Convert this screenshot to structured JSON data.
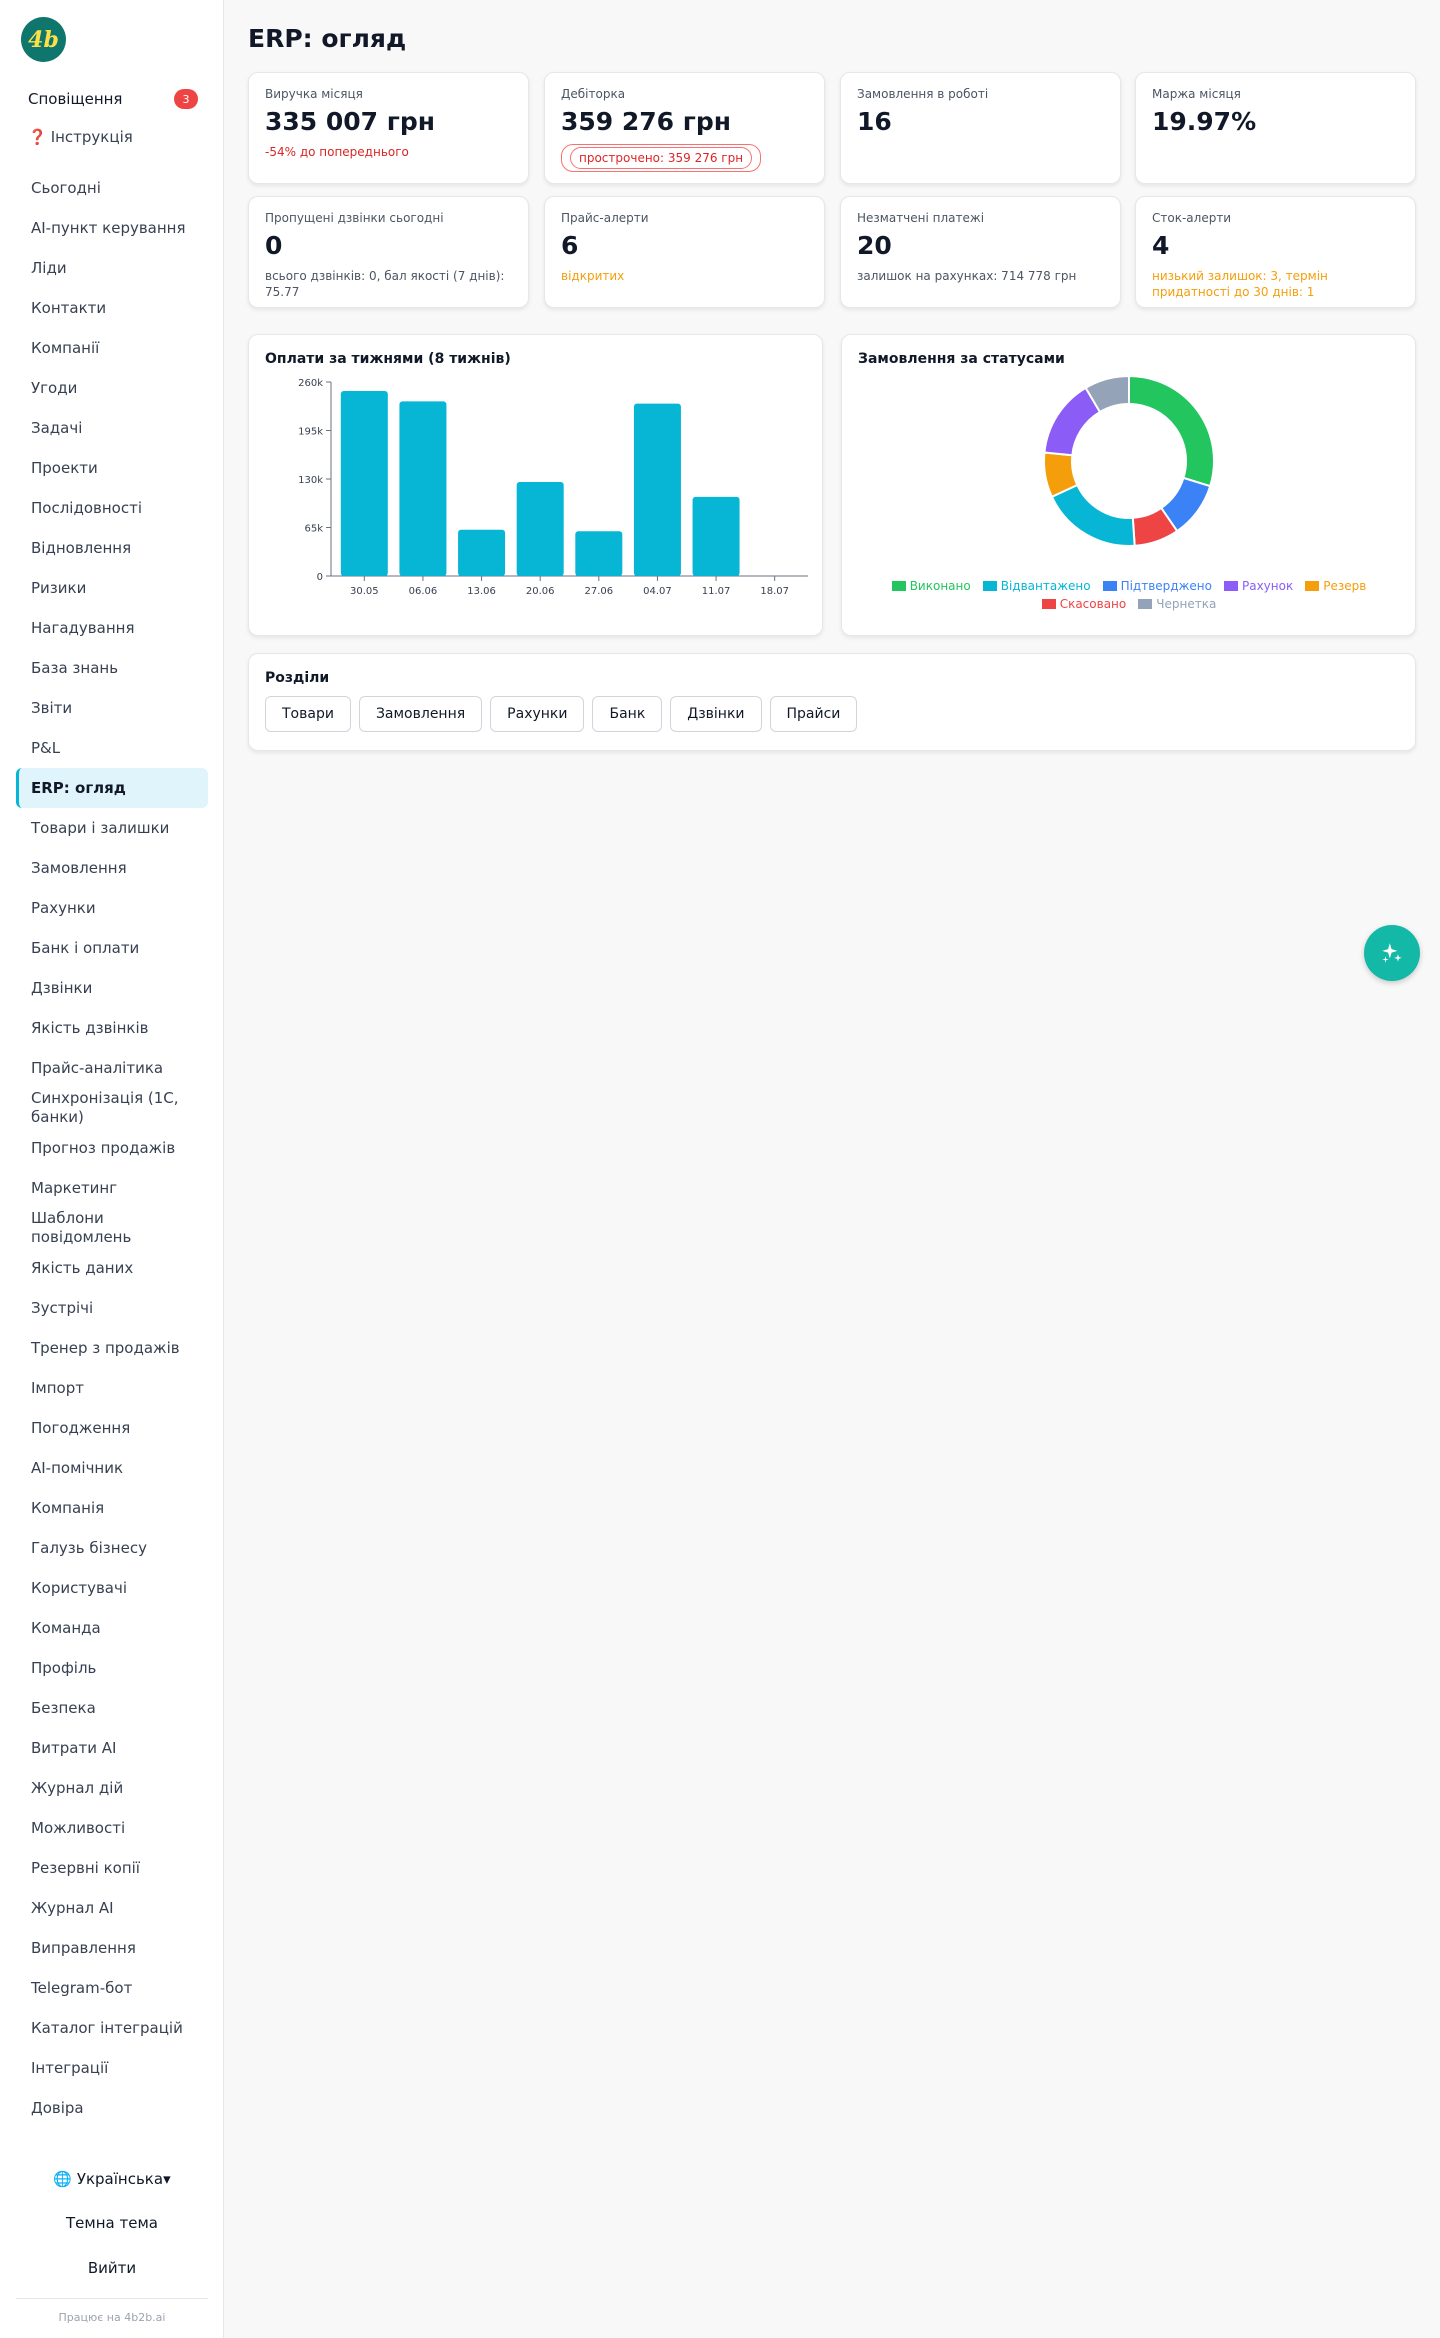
{
  "app": {
    "logo_text": "4b"
  },
  "sidebar": {
    "notifications_label": "Сповіщення",
    "notifications_count": "3",
    "instruction_label": "Інструкція",
    "items": [
      {
        "label": "Сьогодні"
      },
      {
        "label": "AI-пункт керування"
      },
      {
        "label": "Ліди"
      },
      {
        "label": "Контакти"
      },
      {
        "label": "Компанії"
      },
      {
        "label": "Угоди"
      },
      {
        "label": "Задачі"
      },
      {
        "label": "Проекти"
      },
      {
        "label": "Послідовності"
      },
      {
        "label": "Відновлення"
      },
      {
        "label": "Ризики"
      },
      {
        "label": "Нагадування"
      },
      {
        "label": "База знань"
      },
      {
        "label": "Звіти"
      },
      {
        "label": "P&L"
      },
      {
        "label": "ERP: огляд",
        "active": true
      },
      {
        "label": "Товари і залишки"
      },
      {
        "label": "Замовлення"
      },
      {
        "label": "Рахунки"
      },
      {
        "label": "Банк і оплати"
      },
      {
        "label": "Дзвінки"
      },
      {
        "label": "Якість дзвінків"
      },
      {
        "label": "Прайс-аналітика"
      },
      {
        "label": "Синхронізація (1С, банки)"
      },
      {
        "label": "Прогноз продажів"
      },
      {
        "label": "Маркетинг"
      },
      {
        "label": "Шаблони повідомлень"
      },
      {
        "label": "Якість даних"
      },
      {
        "label": "Зустрічі"
      },
      {
        "label": "Тренер з продажів"
      },
      {
        "label": "Імпорт"
      },
      {
        "label": "Погодження"
      },
      {
        "label": "AI-помічник"
      },
      {
        "label": "Компанія"
      },
      {
        "label": "Галузь бізнесу"
      },
      {
        "label": "Користувачі"
      },
      {
        "label": "Команда"
      },
      {
        "label": "Профіль"
      },
      {
        "label": "Безпека"
      },
      {
        "label": "Витрати AI"
      },
      {
        "label": "Журнал дій"
      },
      {
        "label": "Можливості"
      },
      {
        "label": "Резервні копії"
      },
      {
        "label": "Журнал AI"
      },
      {
        "label": "Виправлення"
      },
      {
        "label": "Telegram-бот"
      },
      {
        "label": "Каталог інтеграцій"
      },
      {
        "label": "Інтеграції"
      },
      {
        "label": "Довіра"
      }
    ],
    "language_label": "🌐 Українська▾",
    "theme_label": "Темна тема",
    "logout_label": "Вийти",
    "footer": "Працює на 4b2b.ai"
  },
  "page": {
    "title": "ERP: огляд"
  },
  "kpis": [
    {
      "label": "Виручка місяця",
      "value": "335 007 грн",
      "sub": "-54% до попереднього",
      "sub_style": "red"
    },
    {
      "label": "Дебіторка",
      "value": "359 276 грн",
      "sub": "прострочено: 359 276 грн",
      "sub_style": "pill"
    },
    {
      "label": "Замовлення в роботі",
      "value": "16",
      "sub": "",
      "sub_style": "none"
    },
    {
      "label": "Маржа місяця",
      "value": "19.97%",
      "sub": "",
      "sub_style": "none"
    },
    {
      "label": "Пропущені дзвінки сьогодні",
      "value": "0",
      "sub": "всього дзвінків: 0, бал якості (7 днів): 75.77",
      "sub_style": "gray"
    },
    {
      "label": "Прайс-алерти",
      "value": "6",
      "sub": "відкритих",
      "sub_style": "orange"
    },
    {
      "label": "Незматчені платежі",
      "value": "20",
      "sub": "залишок на рахунках: 714 778 грн",
      "sub_style": "gray"
    },
    {
      "label": "Сток-алерти",
      "value": "4",
      "sub": "низький залишок: 3, термін придатності до 30 днів: 1",
      "sub_style": "orange"
    }
  ],
  "payments_panel": {
    "title": "Оплати за тижнями (8 тижнів)"
  },
  "orders_panel": {
    "title": "Замовлення за статусами"
  },
  "sections_panel": {
    "title": "Розділи",
    "buttons": [
      "Товари",
      "Замовлення",
      "Рахунки",
      "Банк",
      "Дзвінки",
      "Прайси"
    ]
  },
  "colors": {
    "accent": "#06b6d4",
    "bar": "#06b6d4",
    "fab": "#14b8a6"
  },
  "chart_data": [
    {
      "type": "bar",
      "title": "Оплати за тижнями (8 тижнів)",
      "categories": [
        "30.05",
        "06.06",
        "13.06",
        "20.06",
        "27.06",
        "04.07",
        "11.07",
        "18.07"
      ],
      "values": [
        248000,
        234000,
        62000,
        126000,
        60000,
        231000,
        106000,
        0
      ],
      "ylim": [
        0,
        260000
      ],
      "yticks": [
        0,
        65000,
        130000,
        195000,
        260000
      ],
      "ytick_labels": [
        "0",
        "65k",
        "130k",
        "195k",
        "260k"
      ],
      "xlabel": "",
      "ylabel": "",
      "grid": false
    },
    {
      "type": "pie",
      "title": "Замовлення за статусами",
      "legend_position": "bottom",
      "series": [
        {
          "name": "Виконано",
          "value": 14,
          "color": "#22c55e"
        },
        {
          "name": "Відвантажено",
          "value": 9,
          "color": "#06b6d4"
        },
        {
          "name": "Підтверджено",
          "value": 5,
          "color": "#3b82f6"
        },
        {
          "name": "Рахунок",
          "value": 7,
          "color": "#8b5cf6"
        },
        {
          "name": "Резерв",
          "value": 4,
          "color": "#f59e0b"
        },
        {
          "name": "Скасовано",
          "value": 4,
          "color": "#ef4444"
        },
        {
          "name": "Чернетка",
          "value": 4,
          "color": "#94a3b8"
        }
      ],
      "slice_order": [
        "Виконано",
        "Підтверджено",
        "Скасовано",
        "Відвантажено",
        "Резерв",
        "Рахунок",
        "Чернетка"
      ]
    }
  ]
}
